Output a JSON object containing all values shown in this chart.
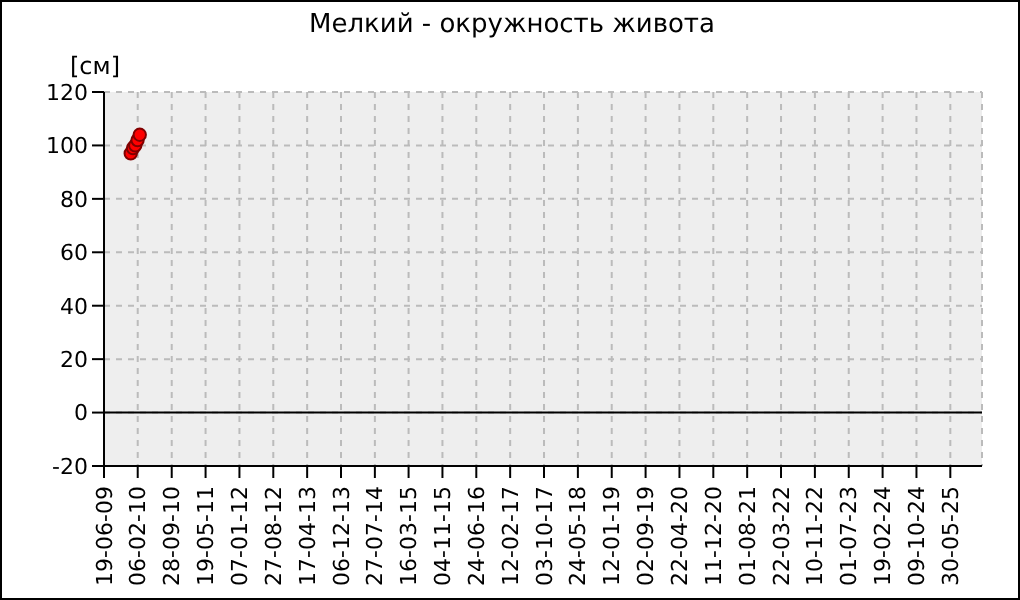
{
  "chart_data": {
    "type": "scatter",
    "title": "Мелкий  - окружность живота",
    "ylabel": "[см]",
    "x": [
      "2009-12-20",
      "2010-01-05",
      "2010-01-20",
      "2010-02-05",
      "2010-02-20"
    ],
    "series": [
      {
        "color": "#ff0000",
        "values": [
          97,
          99,
          100,
          102,
          104
        ]
      }
    ],
    "marker": "circle",
    "xlim": [
      "2009-06-19",
      "2026-01-03"
    ],
    "xticks": [
      {
        "value": "2009-06-19",
        "label": "19-06-09"
      },
      {
        "value": "2010-02-06",
        "label": "06-02-10"
      },
      {
        "value": "2010-09-28",
        "label": "28-09-10"
      },
      {
        "value": "2011-05-19",
        "label": "19-05-11"
      },
      {
        "value": "2012-01-07",
        "label": "07-01-12"
      },
      {
        "value": "2012-08-27",
        "label": "27-08-12"
      },
      {
        "value": "2013-04-17",
        "label": "17-04-13"
      },
      {
        "value": "2013-12-06",
        "label": "06-12-13"
      },
      {
        "value": "2014-07-27",
        "label": "27-07-14"
      },
      {
        "value": "2015-03-16",
        "label": "16-03-15"
      },
      {
        "value": "2015-11-04",
        "label": "04-11-15"
      },
      {
        "value": "2016-06-24",
        "label": "24-06-16"
      },
      {
        "value": "2017-02-12",
        "label": "12-02-17"
      },
      {
        "value": "2017-10-03",
        "label": "03-10-17"
      },
      {
        "value": "2018-05-24",
        "label": "24-05-18"
      },
      {
        "value": "2019-01-12",
        "label": "12-01-19"
      },
      {
        "value": "2019-09-02",
        "label": "02-09-19"
      },
      {
        "value": "2020-04-22",
        "label": "22-04-20"
      },
      {
        "value": "2020-12-11",
        "label": "11-12-20"
      },
      {
        "value": "2021-08-01",
        "label": "01-08-21"
      },
      {
        "value": "2022-03-22",
        "label": "22-03-22"
      },
      {
        "value": "2022-11-10",
        "label": "10-11-22"
      },
      {
        "value": "2023-07-01",
        "label": "01-07-23"
      },
      {
        "value": "2024-02-19",
        "label": "19-02-24"
      },
      {
        "value": "2024-10-09",
        "label": "09-10-24"
      },
      {
        "value": "2025-05-30",
        "label": "30-05-25"
      }
    ],
    "ylim": [
      -20,
      120
    ],
    "yticks": [
      -20,
      0,
      20,
      40,
      60,
      80,
      100,
      120
    ],
    "grid": true
  }
}
